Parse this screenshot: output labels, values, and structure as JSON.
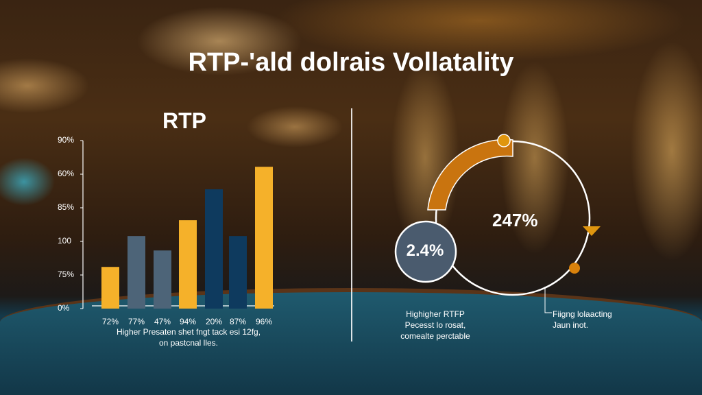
{
  "title": "RTP-'ald dolrais Vollatality",
  "chart_data": [
    {
      "type": "bar",
      "title": "RTP",
      "y_tick_labels": [
        "0%",
        "75%",
        "100",
        "85%",
        "60%",
        "90%"
      ],
      "categories": [
        "72%",
        "77%",
        "47%",
        "94%",
        "20%",
        "87%",
        "96%"
      ],
      "values": [
        1.24,
        2.16,
        1.73,
        2.63,
        3.55,
        2.16,
        4.22
      ],
      "value_units": "tick positions (0 = 0%, 5 = 90%)",
      "ylim": [
        0,
        5
      ],
      "bar_colors": [
        "#f5b12a",
        "#4d6478",
        "#4d6478",
        "#f5b12a",
        "#0e3a5e",
        "#0e3a5e",
        "#f5b12a"
      ],
      "caption": [
        "Higher Presaten shet fngt tack esi 12fg,",
        "on pastcnal lles."
      ]
    },
    {
      "type": "pie",
      "subtype": "ring",
      "center_label": "247%",
      "bubble_label": "2.4%",
      "arc_fraction": 0.25,
      "arc_color": "#c9740f",
      "ring_color": "#ffffff",
      "bubble_color": "#4a5b6e",
      "left_caption": [
        "Highigher RTFP",
        "Pecesst lo rosat,",
        "comealte perctable"
      ],
      "right_caption": [
        "Fiigng lolaacting",
        "Jaun inot."
      ]
    }
  ]
}
